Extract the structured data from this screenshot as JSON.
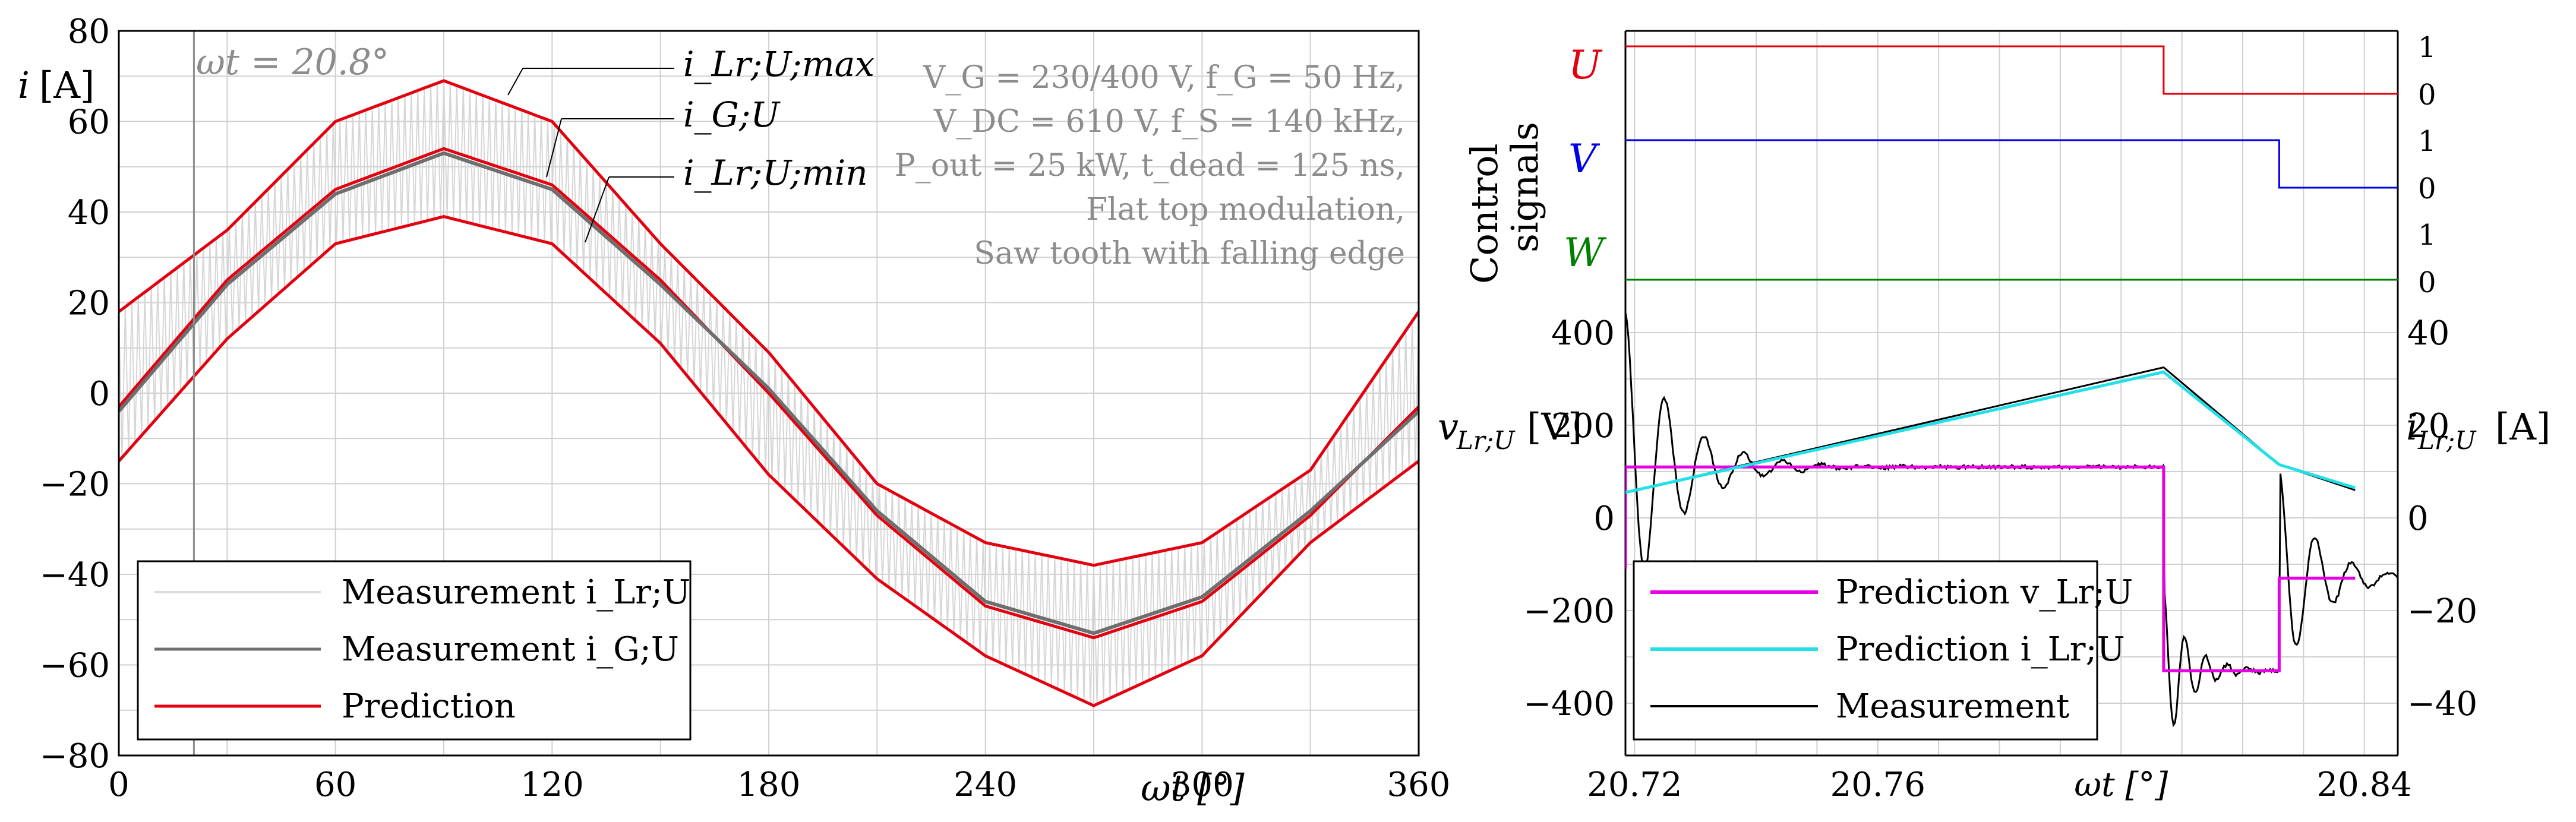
{
  "chart_data": [
    {
      "type": "line",
      "ylabel": "i [A]",
      "xlabel": "ωt [°]",
      "xlim": [
        0,
        360
      ],
      "ylim": [
        -80,
        80
      ],
      "x_ticks": [
        "0",
        "60",
        "120",
        "180",
        "240",
        "300",
        "360"
      ],
      "y_ticks": [
        "80",
        "60",
        "40",
        "20",
        "0",
        "−20",
        "−40",
        "−60",
        "−80"
      ],
      "marker_label": "ωt = 20.8°",
      "marker_x": 20.8,
      "params": [
        "V_G = 230/400 V, f_G = 50 Hz,",
        "V_DC = 610 V, f_S = 140 kHz,",
        "P_out = 25 kW, t_dead = 125 ns,",
        "Flat top modulation,",
        "Saw tooth with falling edge"
      ],
      "annotations": [
        "i_Lr;U;max",
        "i_G;U",
        "i_Lr;U;min"
      ],
      "legend": [
        "Measurement i_Lr;U",
        "Measurement i_G;U",
        "Prediction"
      ],
      "series": [
        {
          "name": "Prediction max",
          "x": [
            0,
            30,
            60,
            90,
            120,
            150,
            180,
            210,
            240,
            270,
            300,
            330,
            360
          ],
          "values": [
            18,
            36,
            60,
            69,
            60,
            33,
            9,
            -20,
            -33,
            -38,
            -33,
            -17,
            18
          ]
        },
        {
          "name": "Prediction center",
          "x": [
            0,
            30,
            60,
            90,
            120,
            150,
            180,
            210,
            240,
            270,
            300,
            330,
            360
          ],
          "values": [
            -3,
            25,
            45,
            54,
            46,
            25,
            0,
            -27,
            -47,
            -54,
            -46,
            -27,
            -3
          ]
        },
        {
          "name": "Prediction min",
          "x": [
            0,
            30,
            60,
            90,
            120,
            150,
            180,
            210,
            240,
            270,
            300,
            330,
            360
          ],
          "values": [
            -15,
            12,
            33,
            39,
            33,
            11,
            -18,
            -41,
            -58,
            -69,
            -58,
            -33,
            -15
          ]
        },
        {
          "name": "Measurement i_G;U",
          "x": [
            0,
            30,
            60,
            90,
            120,
            150,
            180,
            210,
            240,
            270,
            300,
            330,
            360
          ],
          "values": [
            -4,
            24,
            44,
            53,
            45,
            24,
            1,
            -26,
            -46,
            -53,
            -45,
            -26,
            -4
          ]
        }
      ]
    },
    {
      "type": "line",
      "xlabel": "ωt [°]",
      "ylabel_left": "v_Lr;U [V]",
      "ylabel_right": "i_Lr;U [A]",
      "control_label_1": "Control",
      "control_label_2": "signals",
      "x_ticks": [
        "20.72",
        "20.76",
        "ωt [°]",
        "20.84"
      ],
      "y_ticks_left": [
        "400",
        "200",
        "0",
        "−200",
        "−400"
      ],
      "y_ticks_right": [
        "40",
        "20",
        "0",
        "−20",
        "−40"
      ],
      "control_signals": [
        {
          "name": "U",
          "color": "#e3000f",
          "high": "1",
          "low": "0",
          "switch_x": 20.807
        },
        {
          "name": "V",
          "color": "#0000e6",
          "high": "1",
          "low": "0",
          "switch_x": 20.826
        },
        {
          "name": "W",
          "color": "#008000",
          "high": "1",
          "low": "0",
          "switch_x": null
        }
      ],
      "legend": [
        "Prediction v_Lr;U",
        "Prediction i_Lr;U",
        "Measurement"
      ],
      "series": [
        {
          "name": "Prediction v_Lr;U",
          "unit": "V",
          "x": [
            20.7185,
            20.7185,
            20.807,
            20.807,
            20.826,
            20.826,
            20.8385
          ],
          "values": [
            -110,
            110,
            110,
            -330,
            -330,
            -130,
            -130
          ]
        },
        {
          "name": "Prediction i_Lr;U",
          "unit": "A",
          "x": [
            20.7185,
            20.807,
            20.826,
            20.8385
          ],
          "values": [
            5.5,
            31.5,
            11.5,
            6.5
          ]
        },
        {
          "name": "Measurement",
          "x": [
            20.7185,
            20.807,
            20.826,
            20.8385
          ],
          "values": [
            5.5,
            32.5,
            11.5,
            6
          ]
        }
      ]
    }
  ]
}
